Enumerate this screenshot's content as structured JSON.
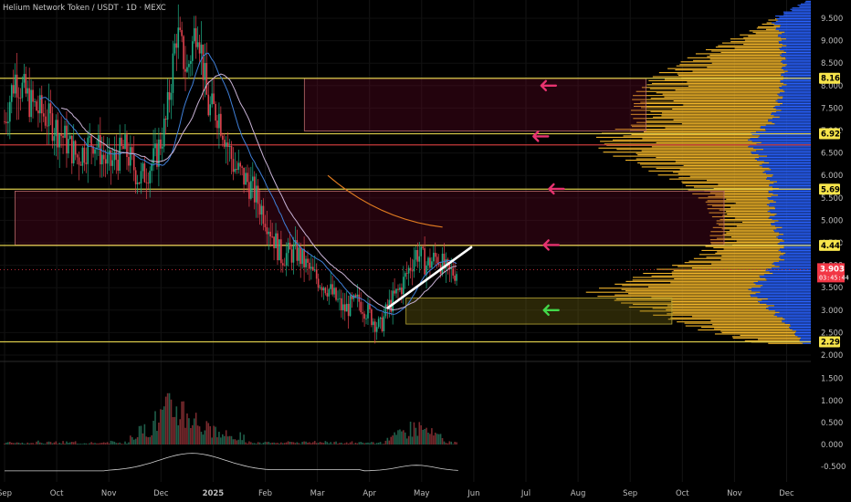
{
  "header": {
    "symbol": "Helium Network Token / USDT · 1D · MEXC"
  },
  "chart_data": {
    "type": "candlestick",
    "title": "Helium Network Token / USDT · 1D · MEXC",
    "x_tick_labels": [
      "Sep",
      "Oct",
      "Nov",
      "Dec",
      "2025",
      "Feb",
      "Mar",
      "Apr",
      "May",
      "Jun",
      "Jul",
      "Aug",
      "Sep",
      "Oct",
      "Nov",
      "Dec"
    ],
    "price_axis": {
      "ylim": [
        2.0,
        10.0
      ],
      "ticks": [
        "9.500",
        "9.000",
        "8.500",
        "8.000",
        "7.500",
        "7.000",
        "6.500",
        "6.000",
        "5.500",
        "5.000",
        "4.500",
        "4.000",
        "3.500",
        "3.000",
        "2.500",
        "2.000"
      ]
    },
    "indicator_axis": {
      "ylim": [
        -0.75,
        1.75
      ],
      "ticks": [
        "1.500",
        "1.000",
        "0.500",
        "0.000",
        "-0.500"
      ]
    },
    "price_labels": [
      {
        "value": 8.164,
        "text": "8.164",
        "color": "#f7e54b"
      },
      {
        "value": 6.928,
        "text": "6.928",
        "color": "#f7e54b"
      },
      {
        "value": 5.694,
        "text": "5.694",
        "color": "#f7e54b"
      },
      {
        "value": 4.441,
        "text": "4.441",
        "color": "#f7e54b"
      },
      {
        "value": 2.294,
        "text": "2.294",
        "color": "#f7e54b"
      }
    ],
    "last_price": {
      "value": 3.903,
      "text": "3.903",
      "countdown": "03:45:44",
      "color": "#f23645"
    },
    "horizontal_levels": [
      {
        "value": 8.164,
        "color": "#d9c94a"
      },
      {
        "value": 6.928,
        "color": "#d9c94a"
      },
      {
        "value": 6.68,
        "color": "#c73a3a"
      },
      {
        "value": 5.694,
        "color": "#d9c94a"
      },
      {
        "value": 4.441,
        "color": "#d9c94a"
      },
      {
        "value": 2.294,
        "color": "#d9c94a"
      }
    ],
    "zones": [
      {
        "from_month": 5.75,
        "to_month": 12.3,
        "low": 6.99,
        "high": 8.16,
        "kind": "resistance"
      },
      {
        "from_month": 0.2,
        "to_month": 13.8,
        "low": 4.45,
        "high": 5.65,
        "kind": "resistance"
      },
      {
        "from_month": 7.7,
        "to_month": 12.8,
        "low": 2.69,
        "high": 3.27,
        "kind": "support"
      }
    ],
    "arrows": [
      {
        "month": 10.4,
        "value": 8.0,
        "color": "#e83370"
      },
      {
        "month": 10.25,
        "value": 6.87,
        "color": "#e83370"
      },
      {
        "month": 10.55,
        "value": 5.7,
        "color": "#e83370"
      },
      {
        "month": 10.45,
        "value": 4.45,
        "color": "#e83370"
      },
      {
        "month": 10.45,
        "value": 3.0,
        "color": "#43d84a"
      }
    ],
    "trendline": {
      "from": [
        7.35,
        3.05
      ],
      "to": [
        8.95,
        4.4
      ],
      "color": "#ffffff"
    },
    "projection_curve": {
      "from": [
        6.2,
        6.0
      ],
      "to": [
        8.4,
        4.85
      ],
      "color": "#e07b20"
    },
    "price_path": [
      [
        0.0,
        7.2
      ],
      [
        0.2,
        8.2
      ],
      [
        0.5,
        7.6
      ],
      [
        0.8,
        7.3
      ],
      [
        1.1,
        6.9
      ],
      [
        1.4,
        6.4
      ],
      [
        1.7,
        6.8
      ],
      [
        2.0,
        6.2
      ],
      [
        2.3,
        6.6
      ],
      [
        2.6,
        5.9
      ],
      [
        2.9,
        6.4
      ],
      [
        3.1,
        7.2
      ],
      [
        3.3,
        9.2
      ],
      [
        3.5,
        8.3
      ],
      [
        3.7,
        9.5
      ],
      [
        3.9,
        7.5
      ],
      [
        4.1,
        7.4
      ],
      [
        4.4,
        6.2
      ],
      [
        4.7,
        5.8
      ],
      [
        5.0,
        5.1
      ],
      [
        5.3,
        4.2
      ],
      [
        5.6,
        4.3
      ],
      [
        5.9,
        3.8
      ],
      [
        6.2,
        3.5
      ],
      [
        6.5,
        3.0
      ],
      [
        6.8,
        3.2
      ],
      [
        7.0,
        2.9
      ],
      [
        7.2,
        2.6
      ],
      [
        7.35,
        3.05
      ],
      [
        7.6,
        3.5
      ],
      [
        7.9,
        4.3
      ],
      [
        8.1,
        4.0
      ],
      [
        8.3,
        4.2
      ],
      [
        8.5,
        3.8
      ],
      [
        8.7,
        3.9
      ]
    ],
    "volume_profile": {
      "buy_color": "#2962ff",
      "sell_color": "#f0b429",
      "profile": [
        [
          9.9,
          4,
          50
        ],
        [
          9.6,
          30,
          42
        ],
        [
          9.2,
          60,
          32
        ],
        [
          8.8,
          100,
          30
        ],
        [
          8.4,
          135,
          28
        ],
        [
          8.0,
          160,
          30
        ],
        [
          7.6,
          170,
          34
        ],
        [
          7.2,
          165,
          42
        ],
        [
          6.9,
          200,
          60
        ],
        [
          6.6,
          200,
          60
        ],
        [
          6.2,
          160,
          48
        ],
        [
          5.8,
          120,
          40
        ],
        [
          5.4,
          100,
          42
        ],
        [
          5.0,
          90,
          40
        ],
        [
          4.6,
          95,
          32
        ],
        [
          4.2,
          105,
          30
        ],
        [
          3.8,
          160,
          48
        ],
        [
          3.4,
          210,
          62
        ],
        [
          3.0,
          160,
          40
        ],
        [
          2.6,
          110,
          20
        ],
        [
          2.25,
          50,
          8
        ]
      ]
    }
  }
}
